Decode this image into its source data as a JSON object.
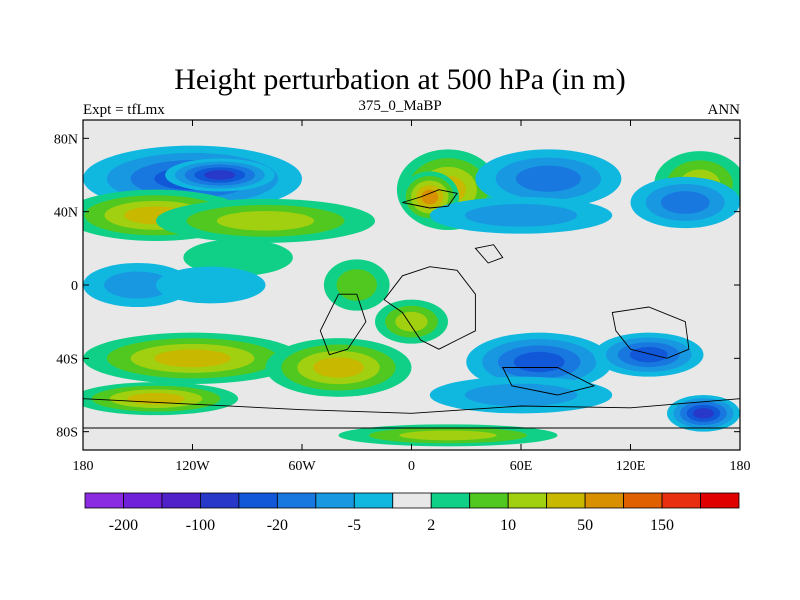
{
  "chart_data": {
    "type": "heatmap",
    "title": "Height perturbation at 500 hPa (in m)",
    "subtitle_left": "Expt = tfLmx",
    "subtitle_center": "375_0_MaBP",
    "subtitle_right": "ANN",
    "x_ticks": [
      "180",
      "120W",
      "60W",
      "0",
      "60E",
      "120E",
      "180"
    ],
    "x_tick_values": [
      -180,
      -120,
      -60,
      0,
      60,
      120,
      180
    ],
    "y_ticks": [
      "80N",
      "40N",
      "0",
      "40S",
      "80S"
    ],
    "y_tick_values": [
      80,
      40,
      0,
      -40,
      -80
    ],
    "xlim": [
      -180,
      180
    ],
    "ylim": [
      -90,
      90
    ],
    "colorbar": {
      "levels": [
        -200,
        -150,
        -100,
        -50,
        -20,
        -10,
        -5,
        -2,
        2,
        5,
        10,
        20,
        50,
        100,
        150,
        200
      ],
      "labels": [
        "-200",
        "-100",
        "-20",
        "-5",
        "2",
        "10",
        "50",
        "150"
      ],
      "colors": [
        "#8a2be2",
        "#7020d8",
        "#5020c8",
        "#2838c8",
        "#1058d8",
        "#1878e0",
        "#1898e0",
        "#10b8e0",
        "#e8e8e8",
        "#10d088",
        "#50c820",
        "#a0d010",
        "#c8b800",
        "#d89000",
        "#e06000",
        "#e83010",
        "#e00000"
      ]
    },
    "blobs": [
      {
        "lon": -120,
        "lat": 58,
        "rx": 60,
        "ry": 18,
        "level": 4
      },
      {
        "lon": -105,
        "lat": 60,
        "rx": 30,
        "ry": 9,
        "level": 3
      },
      {
        "lon": -140,
        "lat": 38,
        "rx": 50,
        "ry": 14,
        "level": 12
      },
      {
        "lon": -80,
        "lat": 35,
        "rx": 60,
        "ry": 12,
        "level": 11
      },
      {
        "lon": -95,
        "lat": 15,
        "rx": 30,
        "ry": 10,
        "level": 9
      },
      {
        "lon": 20,
        "lat": 52,
        "rx": 28,
        "ry": 22,
        "level": 12
      },
      {
        "lon": 10,
        "lat": 48,
        "rx": 16,
        "ry": 14,
        "level": 13
      },
      {
        "lon": 75,
        "lat": 58,
        "rx": 40,
        "ry": 16,
        "level": 5
      },
      {
        "lon": 60,
        "lat": 38,
        "rx": 50,
        "ry": 10,
        "level": 6
      },
      {
        "lon": 158,
        "lat": 55,
        "rx": 25,
        "ry": 18,
        "level": 11
      },
      {
        "lon": 150,
        "lat": 45,
        "rx": 30,
        "ry": 14,
        "level": 5
      },
      {
        "lon": -150,
        "lat": 0,
        "rx": 30,
        "ry": 12,
        "level": 6
      },
      {
        "lon": -110,
        "lat": 0,
        "rx": 30,
        "ry": 10,
        "level": 7
      },
      {
        "lon": -30,
        "lat": 0,
        "rx": 18,
        "ry": 14,
        "level": 10
      },
      {
        "lon": 0,
        "lat": -20,
        "rx": 20,
        "ry": 12,
        "level": 11
      },
      {
        "lon": -120,
        "lat": -40,
        "rx": 60,
        "ry": 14,
        "level": 12
      },
      {
        "lon": -40,
        "lat": -45,
        "rx": 40,
        "ry": 16,
        "level": 12
      },
      {
        "lon": 70,
        "lat": -42,
        "rx": 40,
        "ry": 16,
        "level": 4
      },
      {
        "lon": 130,
        "lat": -38,
        "rx": 30,
        "ry": 12,
        "level": 4
      },
      {
        "lon": 60,
        "lat": -60,
        "rx": 50,
        "ry": 10,
        "level": 6
      },
      {
        "lon": -140,
        "lat": -62,
        "rx": 45,
        "ry": 9,
        "level": 12
      },
      {
        "lon": 20,
        "lat": -82,
        "rx": 60,
        "ry": 6,
        "level": 11
      },
      {
        "lon": 160,
        "lat": -70,
        "rx": 20,
        "ry": 10,
        "level": 3
      }
    ]
  }
}
